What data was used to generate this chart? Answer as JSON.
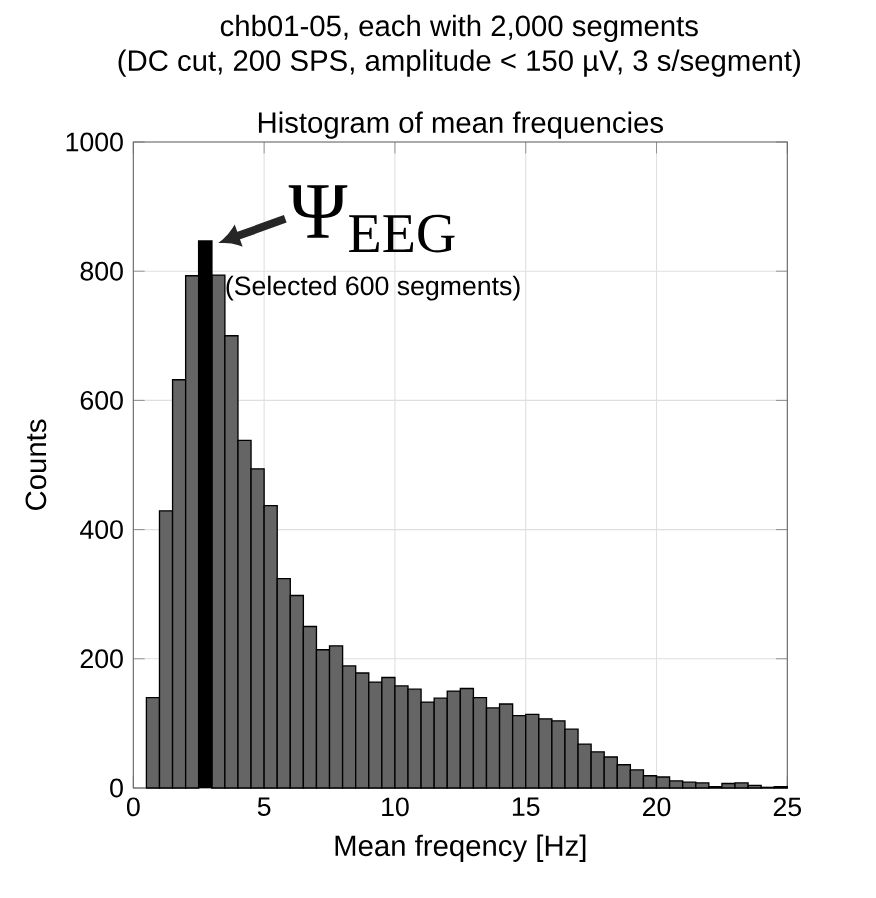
{
  "chart_data": {
    "type": "histogram",
    "title": "chb01-05, each with 2,000 segments",
    "subtitle": "(DC cut, 200 SPS, amplitude < 150 µV, 3 s/segment)",
    "xlabel": "Mean freqency [Hz]",
    "ylabel": "Counts",
    "bins": [
      0.5,
      1,
      1.5,
      2,
      2.5,
      3,
      3.5,
      4,
      4.5,
      5,
      5.5,
      6,
      6.5,
      7,
      7.5,
      8,
      8.5,
      9,
      9.5,
      10,
      10.5,
      11,
      11.5,
      12,
      12.5,
      13,
      13.5,
      14,
      14.5,
      15,
      15.5,
      16,
      16.5,
      17,
      17.5,
      18,
      18.5,
      19,
      19.5,
      20,
      20.5,
      21,
      21.5,
      22,
      22.5,
      23,
      23.5,
      24,
      24.5,
      25
    ],
    "values": [
      140,
      429,
      632,
      793,
      null,
      794,
      700,
      538,
      494,
      437,
      324,
      298,
      250,
      214,
      220,
      189,
      178,
      164,
      171,
      158,
      153,
      133,
      139,
      150,
      154,
      140,
      124,
      130,
      112,
      114,
      107,
      104,
      91,
      68,
      56,
      48,
      36,
      28,
      19,
      17,
      11,
      9,
      8,
      2,
      7,
      8,
      4,
      1,
      2
    ],
    "color": "#656565",
    "series": [
      {
        "type": "bar",
        "x": [
          2.75
        ],
        "values": [
          848
        ],
        "color": "#000000"
      }
    ],
    "annotations": [
      "Histogram of mean frequencies",
      {
        "text": "Ψ$_{EEG}$",
        "x": 2.75,
        "y": 848
      },
      "(Selected 600 segments)"
    ],
    "xlim": [
      0,
      25
    ],
    "ylim": [
      0,
      1000
    ],
    "xticks": [
      0,
      5,
      10,
      15,
      20,
      25
    ],
    "yticks": [
      0,
      200,
      400,
      600,
      800,
      1000
    ],
    "grid": true
  }
}
